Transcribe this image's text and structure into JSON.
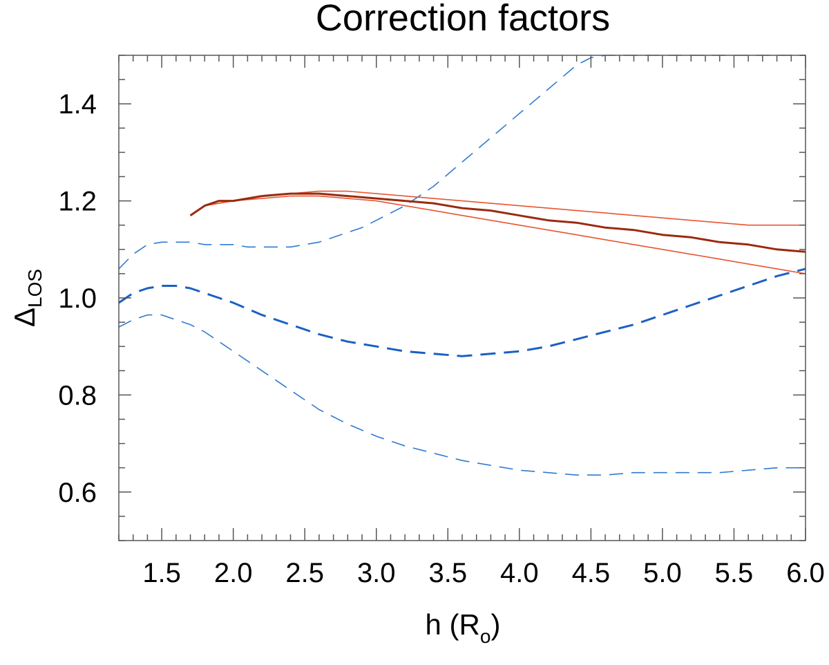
{
  "chart_data": {
    "type": "line",
    "title": "Correction factors",
    "xlabel": {
      "main": "h (R",
      "sub": "o",
      "close": ")"
    },
    "ylabel": {
      "main": "Δ",
      "sub": "LOS"
    },
    "xlim": [
      1.2,
      6.0
    ],
    "ylim": [
      0.5,
      1.5
    ],
    "x_ticks": [
      "1.5",
      "2.0",
      "2.5",
      "3.0",
      "3.5",
      "4.0",
      "4.5",
      "5.0",
      "5.5",
      "6.0"
    ],
    "y_ticks": [
      "0.6",
      "0.8",
      "1.0",
      "1.2",
      "1.4"
    ],
    "grid": false,
    "series": [
      {
        "style": "dashed",
        "color": "#2f7ad0",
        "width": "thin",
        "points": [
          [
            1.2,
            1.06
          ],
          [
            1.3,
            1.09
          ],
          [
            1.4,
            1.11
          ],
          [
            1.5,
            1.115
          ],
          [
            1.6,
            1.115
          ],
          [
            1.7,
            1.115
          ],
          [
            1.8,
            1.11
          ],
          [
            1.9,
            1.11
          ],
          [
            2.0,
            1.11
          ],
          [
            2.1,
            1.105
          ],
          [
            2.2,
            1.105
          ],
          [
            2.3,
            1.105
          ],
          [
            2.4,
            1.105
          ],
          [
            2.5,
            1.11
          ],
          [
            2.6,
            1.115
          ],
          [
            2.7,
            1.125
          ],
          [
            2.8,
            1.135
          ],
          [
            2.9,
            1.145
          ],
          [
            3.0,
            1.16
          ],
          [
            3.1,
            1.175
          ],
          [
            3.2,
            1.19
          ],
          [
            3.3,
            1.21
          ],
          [
            3.4,
            1.23
          ],
          [
            3.5,
            1.255
          ],
          [
            3.6,
            1.28
          ],
          [
            3.7,
            1.305
          ],
          [
            3.8,
            1.33
          ],
          [
            3.9,
            1.355
          ],
          [
            4.0,
            1.38
          ],
          [
            4.1,
            1.405
          ],
          [
            4.2,
            1.43
          ],
          [
            4.3,
            1.455
          ],
          [
            4.4,
            1.48
          ],
          [
            4.5,
            1.495
          ],
          [
            4.6,
            1.5
          ],
          [
            6.0,
            1.5
          ]
        ]
      },
      {
        "style": "dashed",
        "color": "#1a5fc4",
        "width": "thick",
        "points": [
          [
            1.2,
            0.99
          ],
          [
            1.3,
            1.01
          ],
          [
            1.4,
            1.02
          ],
          [
            1.5,
            1.025
          ],
          [
            1.6,
            1.025
          ],
          [
            1.7,
            1.02
          ],
          [
            1.8,
            1.01
          ],
          [
            1.9,
            1.0
          ],
          [
            2.0,
            0.99
          ],
          [
            2.2,
            0.965
          ],
          [
            2.4,
            0.945
          ],
          [
            2.6,
            0.925
          ],
          [
            2.8,
            0.91
          ],
          [
            3.0,
            0.9
          ],
          [
            3.2,
            0.89
          ],
          [
            3.4,
            0.885
          ],
          [
            3.6,
            0.88
          ],
          [
            3.8,
            0.885
          ],
          [
            4.0,
            0.89
          ],
          [
            4.2,
            0.9
          ],
          [
            4.4,
            0.915
          ],
          [
            4.6,
            0.93
          ],
          [
            4.8,
            0.945
          ],
          [
            5.0,
            0.965
          ],
          [
            5.2,
            0.985
          ],
          [
            5.4,
            1.005
          ],
          [
            5.6,
            1.025
          ],
          [
            5.8,
            1.045
          ],
          [
            6.0,
            1.06
          ]
        ]
      },
      {
        "style": "dashed",
        "color": "#2f7ad0",
        "width": "thin",
        "points": [
          [
            1.2,
            0.94
          ],
          [
            1.3,
            0.955
          ],
          [
            1.4,
            0.965
          ],
          [
            1.5,
            0.965
          ],
          [
            1.6,
            0.955
          ],
          [
            1.7,
            0.945
          ],
          [
            1.8,
            0.93
          ],
          [
            1.9,
            0.91
          ],
          [
            2.0,
            0.89
          ],
          [
            2.2,
            0.85
          ],
          [
            2.4,
            0.81
          ],
          [
            2.6,
            0.77
          ],
          [
            2.8,
            0.74
          ],
          [
            3.0,
            0.715
          ],
          [
            3.2,
            0.695
          ],
          [
            3.4,
            0.68
          ],
          [
            3.6,
            0.665
          ],
          [
            3.8,
            0.655
          ],
          [
            4.0,
            0.645
          ],
          [
            4.2,
            0.64
          ],
          [
            4.4,
            0.635
          ],
          [
            4.6,
            0.635
          ],
          [
            4.8,
            0.64
          ],
          [
            5.0,
            0.64
          ],
          [
            5.2,
            0.64
          ],
          [
            5.4,
            0.64
          ],
          [
            5.6,
            0.645
          ],
          [
            5.8,
            0.65
          ],
          [
            6.0,
            0.65
          ]
        ]
      },
      {
        "style": "solid",
        "color": "#e8552f",
        "width": "thin",
        "points": [
          [
            1.7,
            1.17
          ],
          [
            1.8,
            1.19
          ],
          [
            1.9,
            1.195
          ],
          [
            2.0,
            1.2
          ],
          [
            2.2,
            1.21
          ],
          [
            2.4,
            1.215
          ],
          [
            2.6,
            1.22
          ],
          [
            2.8,
            1.22
          ],
          [
            3.0,
            1.215
          ],
          [
            3.2,
            1.21
          ],
          [
            3.4,
            1.205
          ],
          [
            3.6,
            1.2
          ],
          [
            3.8,
            1.195
          ],
          [
            4.0,
            1.19
          ],
          [
            4.2,
            1.185
          ],
          [
            4.4,
            1.18
          ],
          [
            4.6,
            1.175
          ],
          [
            4.8,
            1.17
          ],
          [
            5.0,
            1.165
          ],
          [
            5.2,
            1.16
          ],
          [
            5.4,
            1.155
          ],
          [
            5.6,
            1.15
          ],
          [
            5.8,
            1.15
          ],
          [
            6.0,
            1.15
          ]
        ]
      },
      {
        "style": "solid",
        "color": "#e8552f",
        "width": "thin",
        "points": [
          [
            1.7,
            1.17
          ],
          [
            1.8,
            1.19
          ],
          [
            1.9,
            1.195
          ],
          [
            2.0,
            1.2
          ],
          [
            2.2,
            1.205
          ],
          [
            2.4,
            1.21
          ],
          [
            2.6,
            1.21
          ],
          [
            2.8,
            1.205
          ],
          [
            3.0,
            1.2
          ],
          [
            3.2,
            1.19
          ],
          [
            3.4,
            1.18
          ],
          [
            3.6,
            1.17
          ],
          [
            3.8,
            1.16
          ],
          [
            4.0,
            1.15
          ],
          [
            4.2,
            1.14
          ],
          [
            4.4,
            1.13
          ],
          [
            4.6,
            1.12
          ],
          [
            4.8,
            1.11
          ],
          [
            5.0,
            1.1
          ],
          [
            5.2,
            1.09
          ],
          [
            5.4,
            1.08
          ],
          [
            5.6,
            1.07
          ],
          [
            5.8,
            1.06
          ],
          [
            6.0,
            1.05
          ]
        ]
      },
      {
        "style": "solid",
        "color": "#9a2a0e",
        "width": "thick",
        "points": [
          [
            1.7,
            1.17
          ],
          [
            1.8,
            1.19
          ],
          [
            1.9,
            1.2
          ],
          [
            2.0,
            1.2
          ],
          [
            2.1,
            1.205
          ],
          [
            2.2,
            1.21
          ],
          [
            2.4,
            1.215
          ],
          [
            2.6,
            1.215
          ],
          [
            2.8,
            1.21
          ],
          [
            3.0,
            1.205
          ],
          [
            3.2,
            1.2
          ],
          [
            3.4,
            1.195
          ],
          [
            3.6,
            1.185
          ],
          [
            3.8,
            1.18
          ],
          [
            4.0,
            1.17
          ],
          [
            4.2,
            1.16
          ],
          [
            4.4,
            1.155
          ],
          [
            4.6,
            1.145
          ],
          [
            4.8,
            1.14
          ],
          [
            5.0,
            1.13
          ],
          [
            5.2,
            1.125
          ],
          [
            5.4,
            1.115
          ],
          [
            5.6,
            1.11
          ],
          [
            5.8,
            1.1
          ],
          [
            6.0,
            1.095
          ]
        ]
      }
    ]
  }
}
